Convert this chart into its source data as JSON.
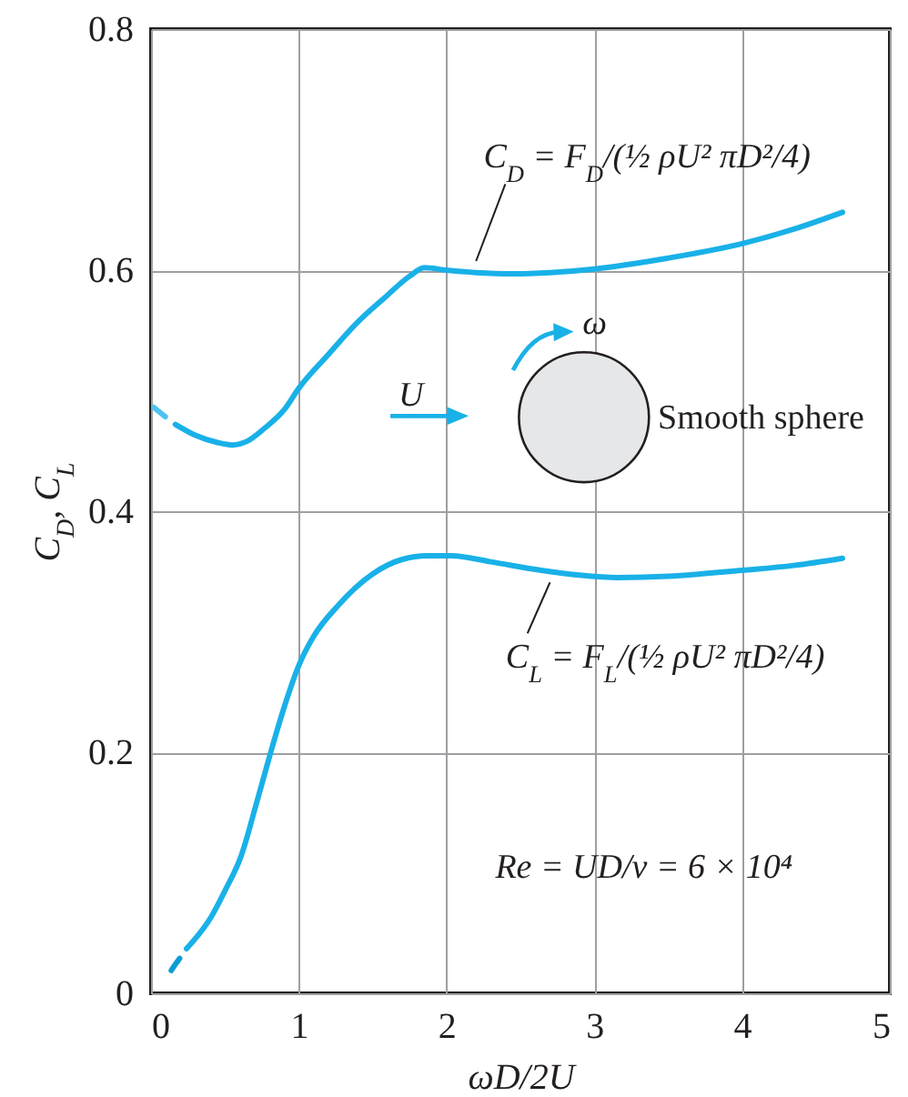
{
  "chart_data": {
    "type": "line",
    "xlabel": "ωD/2U",
    "ylabel": "C$_{D}$, C$_{L}$",
    "xlim": [
      0,
      5
    ],
    "xticks": [
      0,
      1,
      2,
      3,
      4,
      5
    ],
    "ylim": [
      0,
      0.8
    ],
    "yticks": [
      0,
      0.2,
      0.4,
      0.6,
      0.8
    ],
    "grid": true,
    "series": [
      {
        "color": "#4cc3ef",
        "line_style": "dashed",
        "x": [
          0.02,
          0.08,
          0.165
        ],
        "values": [
          0.486,
          0.48,
          0.472
        ]
      },
      {
        "color": "#19b1e8",
        "line_style": "solid",
        "x": [
          0.165,
          0.3,
          0.45,
          0.55,
          0.65,
          0.77,
          0.9,
          1.0,
          1.2,
          1.4,
          1.58,
          1.75,
          1.85,
          2.0,
          2.2,
          2.45,
          2.7,
          3.0,
          3.5,
          4.0,
          4.35,
          4.68
        ],
        "values": [
          0.472,
          0.463,
          0.457,
          0.455,
          0.458,
          0.469,
          0.484,
          0.502,
          0.53,
          0.557,
          0.577,
          0.595,
          0.602,
          0.6,
          0.598,
          0.597,
          0.598,
          0.601,
          0.61,
          0.622,
          0.634,
          0.648
        ]
      },
      {
        "color": "#0b9cd4",
        "line_style": "dashed",
        "x": [
          0.137,
          0.17,
          0.2,
          0.24
        ],
        "values": [
          0.019,
          0.025,
          0.03,
          0.037
        ]
      },
      {
        "color": "#19b1e8",
        "line_style": "solid",
        "x": [
          0.24,
          0.41,
          0.5,
          0.61,
          0.71,
          0.81,
          0.9,
          1.0,
          1.1,
          1.26,
          1.5,
          1.7,
          1.87,
          2.03,
          2.3,
          2.64,
          2.9,
          3.16,
          3.5,
          4.0,
          4.35,
          4.68
        ],
        "values": [
          0.037,
          0.064,
          0.085,
          0.114,
          0.156,
          0.2,
          0.237,
          0.272,
          0.296,
          0.321,
          0.348,
          0.36,
          0.363,
          0.363,
          0.358,
          0.351,
          0.347,
          0.345,
          0.346,
          0.351,
          0.355,
          0.361
        ]
      }
    ],
    "annotations": [
      {
        "text": "C$_{D}$ = F$_{D}$/(½ ρU² πD²/4)",
        "x": 2.2,
        "y": 0.6
      },
      {
        "text": "C$_{L}$ = F$_{L}$/(½ ρU² πD²/4)",
        "x": 2.7,
        "y": 0.35
      },
      "U",
      "ω",
      "Smooth sphere",
      "Re = UD/ν = 6 × 10⁴"
    ]
  }
}
